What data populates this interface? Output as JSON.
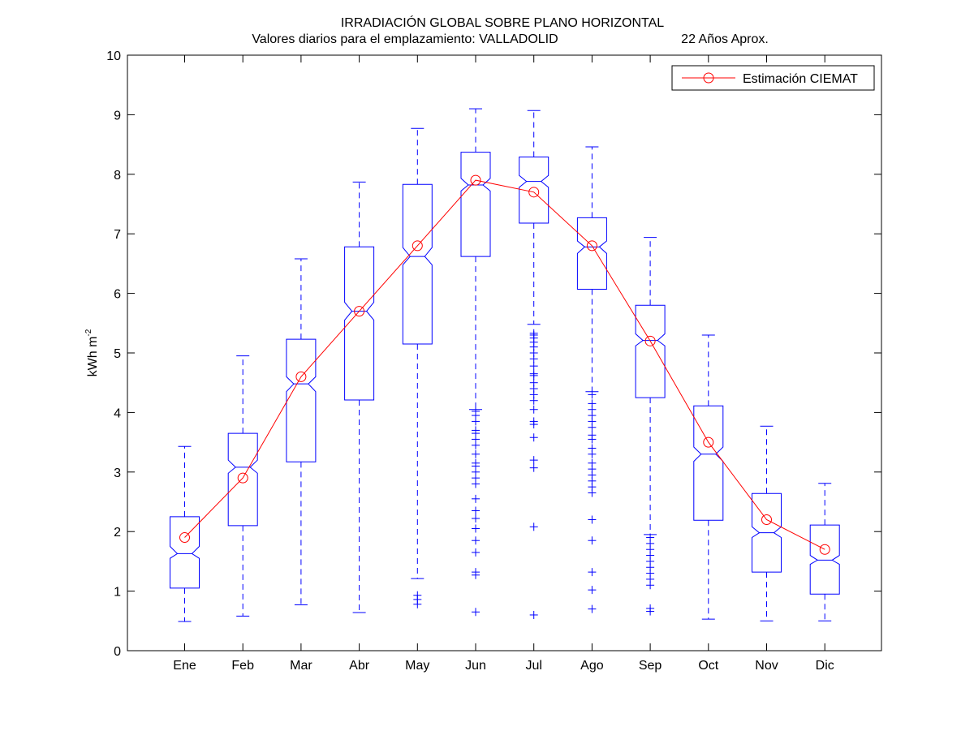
{
  "figure": {
    "title": "IRRADIACIÓN GLOBAL SOBRE PLANO HORIZONTAL",
    "subtitle_left": "Valores diarios para el emplazamiento:  VALLADOLID",
    "subtitle_right": "22 Años Aprox."
  },
  "colors": {
    "box": "#0000ff",
    "estimate": "#ff0000",
    "axes": "#000000"
  },
  "chart_data": {
    "type": "box",
    "title": "IRRADIACIÓN GLOBAL SOBRE PLANO HORIZONTAL",
    "subtitle": "Valores diarios para el emplazamiento:  VALLADOLID                    22 Años Aprox.",
    "ylabel_base": "kWh m",
    "ylabel_exp": "-2",
    "xlabel": "",
    "ylim": [
      0,
      10
    ],
    "yticks": [
      0,
      1,
      2,
      3,
      4,
      5,
      6,
      7,
      8,
      9,
      10
    ],
    "grid": false,
    "legend": {
      "position": "top-right",
      "entries": [
        "Estimación CIEMAT"
      ]
    },
    "categories": [
      "Ene",
      "Feb",
      "Mar",
      "Abr",
      "May",
      "Jun",
      "Jul",
      "Ago",
      "Sep",
      "Oct",
      "Nov",
      "Dic"
    ],
    "boxes": [
      {
        "whisker_low": 0.49,
        "q1": 1.05,
        "median": 1.63,
        "q3": 2.25,
        "whisker_high": 3.43,
        "notch_low": 1.55,
        "notch_high": 1.75,
        "outliers": []
      },
      {
        "whisker_low": 0.58,
        "q1": 2.1,
        "median": 3.08,
        "q3": 3.65,
        "whisker_high": 4.95,
        "notch_low": 2.98,
        "notch_high": 3.2,
        "outliers": []
      },
      {
        "whisker_low": 0.77,
        "q1": 3.17,
        "median": 4.48,
        "q3": 5.23,
        "whisker_high": 6.58,
        "notch_low": 4.35,
        "notch_high": 4.6,
        "outliers": []
      },
      {
        "whisker_low": 0.64,
        "q1": 4.21,
        "median": 5.7,
        "q3": 6.78,
        "whisker_high": 7.87,
        "notch_low": 5.55,
        "notch_high": 5.85,
        "outliers": []
      },
      {
        "whisker_low": 1.21,
        "q1": 5.15,
        "median": 6.62,
        "q3": 7.83,
        "whisker_high": 8.77,
        "notch_low": 6.48,
        "notch_high": 6.77,
        "outliers": [
          0.78,
          0.86,
          0.93
        ]
      },
      {
        "whisker_low": 4.05,
        "q1": 6.62,
        "median": 7.82,
        "q3": 8.37,
        "whisker_high": 9.1,
        "notch_low": 7.72,
        "notch_high": 7.93,
        "outliers": [
          0.65,
          1.27,
          1.32,
          1.65,
          1.85,
          2.05,
          2.22,
          2.35,
          2.55,
          2.8,
          2.9,
          3.0,
          3.1,
          3.15,
          3.3,
          3.45,
          3.55,
          3.65,
          3.7,
          3.85,
          3.95,
          4.02
        ]
      },
      {
        "whisker_low": 5.48,
        "q1": 7.18,
        "median": 7.88,
        "q3": 8.29,
        "whisker_high": 9.07,
        "notch_low": 7.78,
        "notch_high": 7.98,
        "outliers": [
          0.6,
          2.08,
          3.07,
          3.2,
          3.58,
          3.8,
          3.85,
          4.05,
          4.2,
          4.3,
          4.4,
          4.5,
          4.62,
          4.65,
          4.78,
          4.9,
          5.0,
          5.1,
          5.18,
          5.25,
          5.3,
          5.33
        ]
      },
      {
        "whisker_low": 4.35,
        "q1": 6.07,
        "median": 6.78,
        "q3": 7.27,
        "whisker_high": 8.46,
        "notch_low": 6.67,
        "notch_high": 6.88,
        "outliers": [
          0.7,
          1.02,
          1.32,
          1.85,
          2.2,
          2.65,
          2.75,
          2.85,
          2.95,
          3.05,
          3.15,
          3.3,
          3.4,
          3.55,
          3.62,
          3.75,
          3.85,
          3.95,
          4.05,
          4.15,
          4.3
        ]
      },
      {
        "whisker_low": 1.95,
        "q1": 4.25,
        "median": 5.21,
        "q3": 5.8,
        "whisker_high": 6.94,
        "notch_low": 5.12,
        "notch_high": 5.32,
        "outliers": [
          0.66,
          0.71,
          1.1,
          1.2,
          1.3,
          1.4,
          1.5,
          1.6,
          1.7,
          1.8,
          1.9
        ]
      },
      {
        "whisker_low": 0.53,
        "q1": 2.19,
        "median": 3.3,
        "q3": 4.11,
        "whisker_high": 5.3,
        "notch_low": 3.18,
        "notch_high": 3.42,
        "outliers": []
      },
      {
        "whisker_low": 0.5,
        "q1": 1.32,
        "median": 1.98,
        "q3": 2.64,
        "whisker_high": 3.77,
        "notch_low": 1.9,
        "notch_high": 2.08,
        "outliers": []
      },
      {
        "whisker_low": 0.5,
        "q1": 0.95,
        "median": 1.52,
        "q3": 2.11,
        "whisker_high": 2.81,
        "notch_low": 1.45,
        "notch_high": 1.6,
        "outliers": []
      }
    ],
    "series": [
      {
        "name": "Estimación CIEMAT",
        "values": [
          1.9,
          2.9,
          4.6,
          5.7,
          6.8,
          7.9,
          7.7,
          6.8,
          5.2,
          3.5,
          2.2,
          1.7
        ]
      }
    ]
  }
}
